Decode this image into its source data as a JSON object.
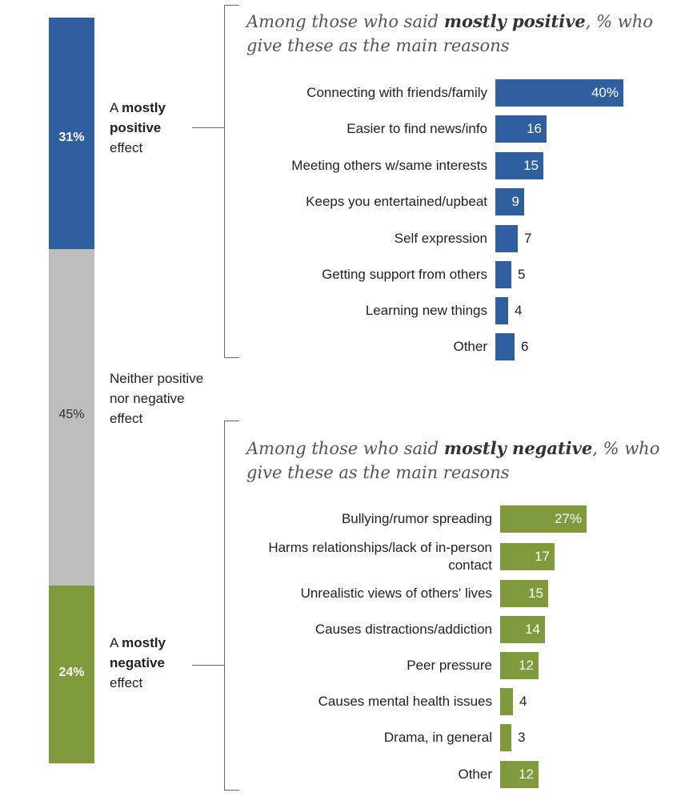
{
  "colors": {
    "positive": "#2f5f9e",
    "neutral": "#bdbdbd",
    "negative": "#7f9a3a"
  },
  "chart_data": [
    {
      "type": "bar",
      "stacked": true,
      "orientation": "vertical",
      "categories": [
        "A mostly positive effect",
        "Neither positive nor negative effect",
        "A mostly negative effect"
      ],
      "values": [
        31,
        45,
        24
      ],
      "value_labels": [
        "31%",
        "45%",
        "24%"
      ],
      "category_labels": {
        "positive": {
          "pre": "A ",
          "bold": "mostly positive",
          "post": " effect"
        },
        "neutral": {
          "text": "Neither positive nor negative effect"
        },
        "negative": {
          "pre": "A ",
          "bold": "mostly negative",
          "post": " effect"
        }
      }
    },
    {
      "type": "bar",
      "orientation": "horizontal",
      "title_pre": "Among those who said ",
      "title_bold": "mostly positive",
      "title_post": ", % who give these as the main reasons",
      "categories": [
        "Connecting with friends/family",
        "Easier to find news/info",
        "Meeting others w/same interests",
        "Keeps you entertained/upbeat",
        "Self expression",
        "Getting support from others",
        "Learning new things",
        "Other"
      ],
      "values": [
        40,
        16,
        15,
        9,
        7,
        5,
        4,
        6
      ],
      "value_labels": [
        "40%",
        "16",
        "15",
        "9",
        "7",
        "5",
        "4",
        "6"
      ]
    },
    {
      "type": "bar",
      "orientation": "horizontal",
      "title_pre": "Among those who said ",
      "title_bold": "mostly negative",
      "title_post": ", % who give these as the main reasons",
      "categories": [
        "Bullying/rumor spreading",
        "Harms relationships/lack of in-person contact",
        "Unrealistic views of others' lives",
        "Causes distractions/addiction",
        "Peer pressure",
        "Causes mental health issues",
        "Drama, in general",
        "Other"
      ],
      "values": [
        27,
        17,
        15,
        14,
        12,
        4,
        3,
        12
      ],
      "value_labels": [
        "27%",
        "17",
        "15",
        "14",
        "12",
        "4",
        "3",
        "12"
      ]
    }
  ]
}
